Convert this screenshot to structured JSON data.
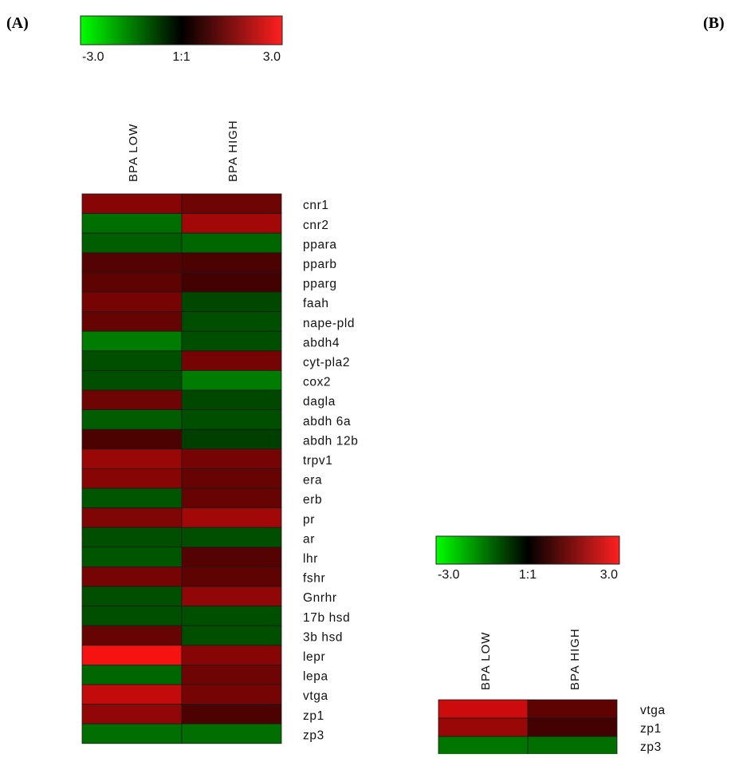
{
  "panels": [
    {
      "label": "(A)"
    },
    {
      "label": "(B)"
    }
  ],
  "chart_data": [
    {
      "type": "heatmap",
      "panel": "(A)",
      "color_scale": {
        "min": -3.0,
        "mid": 0,
        "max": 3.0,
        "tick_labels": [
          "-3.0",
          "1:1",
          "3.0"
        ],
        "colors": {
          "low": "#00ff00",
          "mid": "#000000",
          "high": "#ff2020"
        }
      },
      "columns": [
        "BPA LOW",
        "BPA HIGH"
      ],
      "rows": [
        "cnr1",
        "cnr2",
        "ppara",
        "pparb",
        "pparg",
        "faah",
        "nape-pld",
        "abdh4",
        "cyt-pla2",
        "cox2",
        "dagla",
        "abdh 6a",
        "abdh 12b",
        "trpv1",
        "era",
        "erb",
        "pr",
        "ar",
        "lhr",
        "fshr",
        "Gnrhr",
        "17b hsd",
        "3b hsd",
        "lepr",
        "lepa",
        "vtga",
        "zp1",
        "zp3"
      ],
      "values": [
        [
          1.6,
          1.3
        ],
        [
          -1.4,
          1.9
        ],
        [
          -1.2,
          -1.3
        ],
        [
          1.0,
          0.9
        ],
        [
          1.1,
          0.8
        ],
        [
          1.4,
          -0.9
        ],
        [
          1.2,
          -1.0
        ],
        [
          -1.6,
          -1.0
        ],
        [
          -1.0,
          1.4
        ],
        [
          -1.0,
          -1.6
        ],
        [
          1.3,
          -0.9
        ],
        [
          -1.2,
          -1.0
        ],
        [
          0.9,
          -0.8
        ],
        [
          1.8,
          1.4
        ],
        [
          1.6,
          1.2
        ],
        [
          -1.1,
          1.2
        ],
        [
          1.5,
          1.9
        ],
        [
          -1.0,
          -1.0
        ],
        [
          -1.1,
          1.0
        ],
        [
          1.4,
          1.1
        ],
        [
          -1.0,
          1.7
        ],
        [
          -1.0,
          -1.0
        ],
        [
          1.2,
          -1.0
        ],
        [
          2.9,
          1.6
        ],
        [
          -1.3,
          1.3
        ],
        [
          2.3,
          1.4
        ],
        [
          1.7,
          0.9
        ],
        [
          -1.4,
          -1.4
        ]
      ]
    },
    {
      "type": "heatmap",
      "panel": "(B)",
      "color_scale": {
        "min": -3.0,
        "mid": 0,
        "max": 3.0,
        "tick_labels": [
          "-3.0",
          "1:1",
          "3.0"
        ],
        "colors": {
          "low": "#00ff00",
          "mid": "#000000",
          "high": "#ff2020"
        }
      },
      "columns": [
        "BPA LOW",
        "BPA HIGH"
      ],
      "rows": [
        "vtga",
        "zp1",
        "zp3"
      ],
      "values": [
        [
          2.4,
          1.1
        ],
        [
          1.8,
          0.8
        ],
        [
          -1.5,
          -1.4
        ]
      ]
    }
  ]
}
